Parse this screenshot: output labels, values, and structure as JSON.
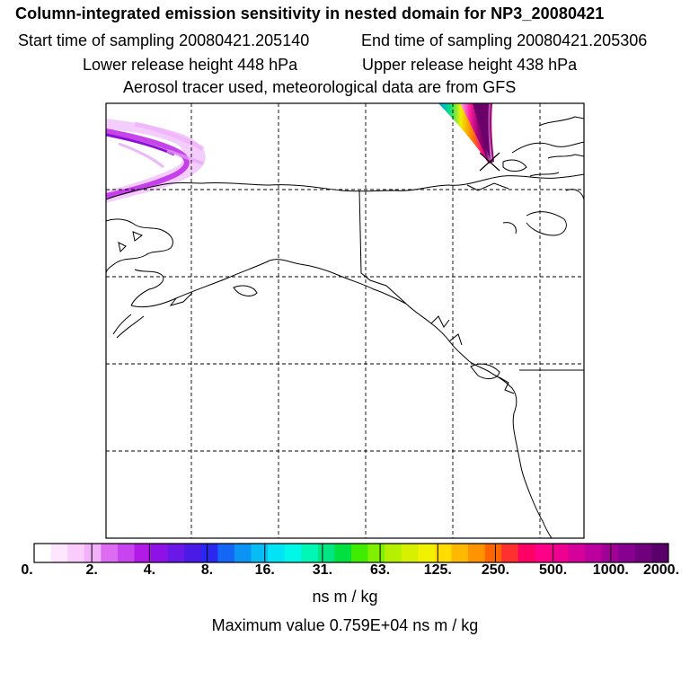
{
  "header": {
    "title": "Column-integrated emission sensitivity in nested domain for NP3_20080421",
    "start_time": "Start time of sampling 20080421.205140",
    "end_time": "End time of sampling 20080421.205306",
    "lower_height": "Lower release height  448 hPa",
    "upper_height": "Upper release height  438 hPa",
    "tracer_info": "Aerosol tracer used, meteorological data are from GFS"
  },
  "colors": {
    "coast": "#000000",
    "grid": "#000000",
    "plume": "#a000c8"
  },
  "colorbar": {
    "segments": [
      "#ffffff",
      "#fde6fe",
      "#f9ccfd",
      "#f3b0fb",
      "#dd6cf2",
      "#c744ee",
      "#b21ae8",
      "#8e12e6",
      "#6a18e8",
      "#4a1ae6",
      "#2a28f0",
      "#1466f4",
      "#0c94f4",
      "#08bcf4",
      "#00e4f6",
      "#00f6e6",
      "#00f6b4",
      "#00e682",
      "#00e040",
      "#40ec00",
      "#80f000",
      "#b4f000",
      "#d6f000",
      "#f0f000",
      "#ffdc00",
      "#ffb800",
      "#ff9400",
      "#ff6400",
      "#ff3030",
      "#ff0066",
      "#ff0088",
      "#ef0090",
      "#d6009a",
      "#bc00a0",
      "#a00098",
      "#880090",
      "#70007c",
      "#5a006a"
    ],
    "major_every": 4,
    "tick_labels": [
      "0.",
      "2.",
      "4.",
      "8.",
      "16.",
      "31.",
      "63.",
      "125.",
      "250.",
      "500.",
      "1000.",
      "2000."
    ],
    "units": "ns m / kg",
    "max_value": "Maximum value  0.759E+04 ns m / kg"
  }
}
